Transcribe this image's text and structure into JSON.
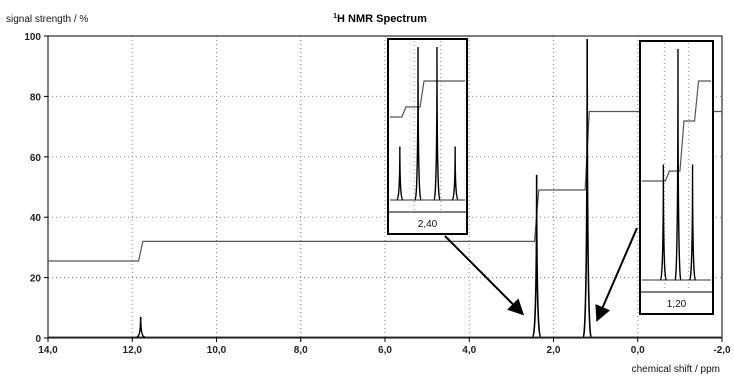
{
  "chart_data": {
    "type": "line",
    "title": "H NMR Spectrum",
    "title_superscript": "1",
    "xlabel": "chemical shift / ppm",
    "ylabel": "signal strength / %",
    "xlim": [
      14.0,
      -2.0
    ],
    "ylim": [
      0,
      100
    ],
    "x_ticks": [
      "14,0",
      "12,0",
      "10,0",
      "8,0",
      "6,0",
      "4,0",
      "2,0",
      "0,0",
      "-2,0"
    ],
    "y_ticks": [
      "0",
      "20",
      "40",
      "60",
      "80",
      "100"
    ],
    "grid": true,
    "series": [
      {
        "kind": "spectrum",
        "peaks": [
          {
            "shift": 11.8,
            "intensity": 7
          },
          {
            "shift": 2.4,
            "intensity": 54
          },
          {
            "shift": 1.2,
            "intensity": 99
          }
        ]
      },
      {
        "kind": "integration",
        "x": [
          14.0,
          11.85,
          11.75,
          2.45,
          2.35,
          1.25,
          1.15,
          -2.0
        ],
        "y": [
          25.5,
          25.5,
          32,
          32,
          49,
          49,
          75,
          75
        ]
      }
    ],
    "insets": [
      {
        "label": "2,40",
        "center": 2.4,
        "pattern": "quartet"
      },
      {
        "label": "1,20",
        "center": 1.2,
        "pattern": "triplet"
      }
    ]
  }
}
